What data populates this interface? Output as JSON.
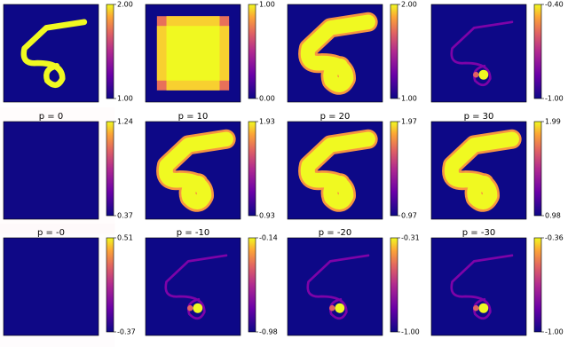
{
  "chart_data": [
    {
      "type": "heatmap",
      "colormap": "plasma",
      "zlim": [
        1,
        2
      ],
      "zticks": [
        {
          "value": 1,
          "label": "1.00"
        },
        {
          "value": 2,
          "label": "2.00"
        }
      ]
    },
    {
      "type": "heatmap",
      "colormap": "plasma",
      "zlim": [
        0,
        1
      ],
      "zticks": [
        {
          "value": 0,
          "label": "0.00"
        },
        {
          "value": 1,
          "label": "1.00"
        }
      ]
    },
    {
      "type": "heatmap",
      "colormap": "plasma",
      "zlim": [
        1,
        2
      ],
      "zticks": [
        {
          "value": 1,
          "label": "1.00"
        },
        {
          "value": 2,
          "label": "2.00"
        }
      ]
    },
    {
      "type": "heatmap",
      "colormap": "plasma",
      "zlim": [
        -1,
        -0.4
      ],
      "zticks": [
        {
          "value": -1,
          "label": "-1.00"
        },
        {
          "value": -0.4,
          "label": "-0.40"
        }
      ]
    },
    {
      "type": "heatmap",
      "colormap": "plasma",
      "title": "p = 0",
      "zlim": [
        0.37,
        1.24
      ],
      "zticks": [
        0.37,
        1.24
      ]
    },
    {
      "type": "heatmap",
      "colormap": "plasma",
      "title": "p = 10",
      "zlim": [
        0.93,
        1.93
      ],
      "zticks": [
        0.93,
        1.93
      ]
    },
    {
      "type": "heatmap",
      "colormap": "plasma",
      "title": "p = 20",
      "zlim": [
        0.97,
        1.97
      ],
      "zticks": [
        0.97,
        1.97
      ]
    },
    {
      "type": "heatmap",
      "colormap": "plasma",
      "title": "p = 30",
      "zlim": [
        0.98,
        1.99
      ],
      "zticks": [
        0.98,
        1.99
      ]
    },
    {
      "type": "heatmap",
      "colormap": "plasma",
      "title": "p = -0",
      "zlim": [
        -0.37,
        0.51
      ],
      "zticks": [
        -0.37,
        0.51
      ]
    },
    {
      "type": "heatmap",
      "colormap": "plasma",
      "title": "p = -10",
      "zlim": [
        -0.98,
        -0.14
      ],
      "zticks": [
        -0.98,
        -0.14
      ]
    },
    {
      "type": "heatmap",
      "colormap": "plasma",
      "title": "p = -20",
      "zlim": [
        -1,
        -0.31
      ],
      "zticks": [
        {
          "value": -1,
          "label": "-1.00"
        },
        -0.31
      ]
    },
    {
      "type": "heatmap",
      "colormap": "plasma",
      "title": "p = -30",
      "zlim": [
        -1,
        -0.36
      ],
      "zticks": [
        {
          "value": -1,
          "label": "-1.00"
        },
        -0.36
      ]
    }
  ]
}
